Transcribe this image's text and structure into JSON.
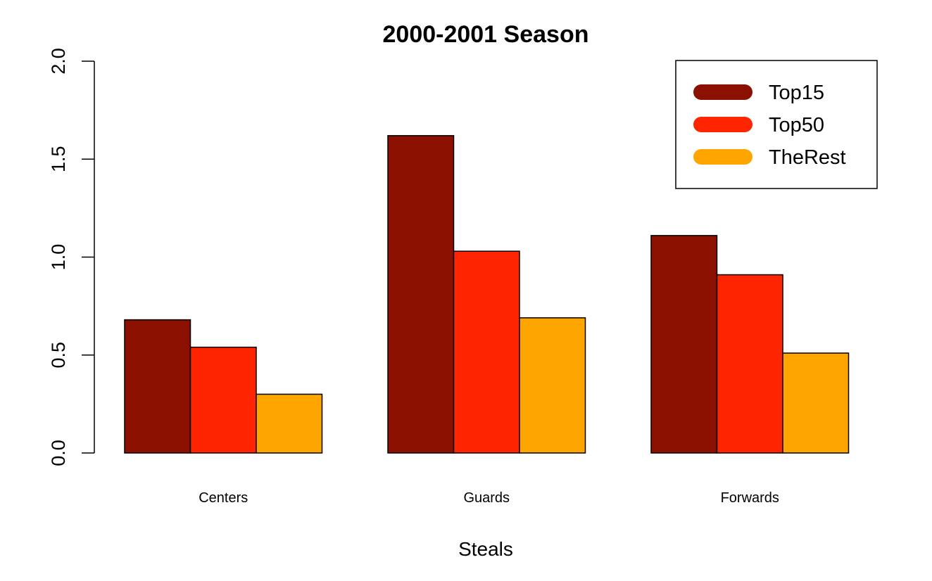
{
  "chart_data": {
    "type": "bar",
    "title": "2000-2001 Season",
    "xlabel": "Steals",
    "ylabel": "",
    "categories": [
      "Centers",
      "Guards",
      "Forwards"
    ],
    "series": [
      {
        "name": "Top15",
        "color": "#8B1000",
        "values": [
          0.68,
          1.62,
          1.11
        ]
      },
      {
        "name": "Top50",
        "color": "#FF2500",
        "values": [
          0.54,
          1.03,
          0.91
        ]
      },
      {
        "name": "TheRest",
        "color": "#FFA500",
        "values": [
          0.3,
          0.69,
          0.51
        ]
      }
    ],
    "ylim": [
      0,
      2
    ],
    "yticks": [
      "0.0",
      "0.5",
      "1.0",
      "1.5",
      "2.0"
    ],
    "grid": false,
    "legend_position": "top-right"
  }
}
